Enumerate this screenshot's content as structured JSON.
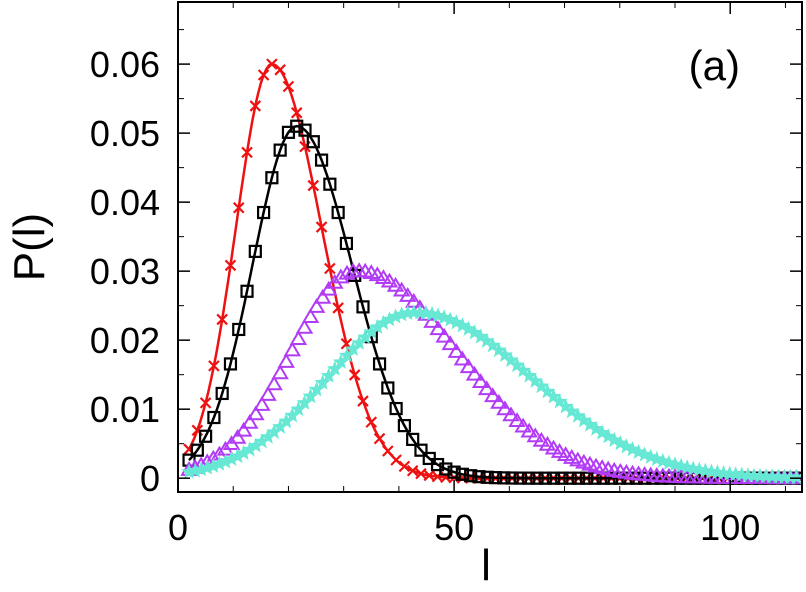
{
  "panel_label": "(a)",
  "chart_data": {
    "type": "line",
    "title": "",
    "xlabel": "l",
    "ylabel": "P(l)",
    "xlim": [
      0,
      113
    ],
    "ylim": [
      -0.002,
      0.069
    ],
    "x_ticks": [
      0,
      50,
      100
    ],
    "x_tick_labels": [
      "0",
      "50",
      "100"
    ],
    "y_ticks": [
      0,
      0.01,
      0.02,
      0.03,
      0.04,
      0.05,
      0.06
    ],
    "y_tick_labels": [
      "0",
      "0.01",
      "0.02",
      "0.03",
      "0.04",
      "0.05",
      "0.06"
    ],
    "grid": false,
    "legend": null,
    "series": [
      {
        "name": "red crosses",
        "color": "#ee1111",
        "marker": "cross",
        "line": true,
        "curve": {
          "x0": 17,
          "sigma_left": 6.5,
          "sigma_right": 9,
          "peak": 0.06
        },
        "x_range": [
          2,
          113
        ],
        "x_step": 1.5
      },
      {
        "name": "black squares",
        "color": "#000000",
        "marker": "square",
        "line": true,
        "curve": {
          "x0": 21.5,
          "sigma_left": 8,
          "sigma_right": 10,
          "peak": 0.051
        },
        "x_range": [
          2,
          113
        ],
        "x_step": 1.5
      },
      {
        "name": "purple triangles",
        "color": "#b23cf5",
        "marker": "triangle",
        "line": false,
        "curve": {
          "x0": 32.5,
          "sigma_left": 12,
          "sigma_right": 18,
          "peak": 0.03
        },
        "x_range": [
          2,
          113
        ],
        "x_step": 1.1
      },
      {
        "name": "turquoise stars",
        "color": "#66e8d4",
        "marker": "star",
        "line": false,
        "curve": {
          "x0": 43,
          "sigma_left": 16,
          "sigma_right": 21,
          "peak": 0.024
        },
        "x_range": [
          2,
          113
        ],
        "x_step": 1.1
      }
    ]
  }
}
